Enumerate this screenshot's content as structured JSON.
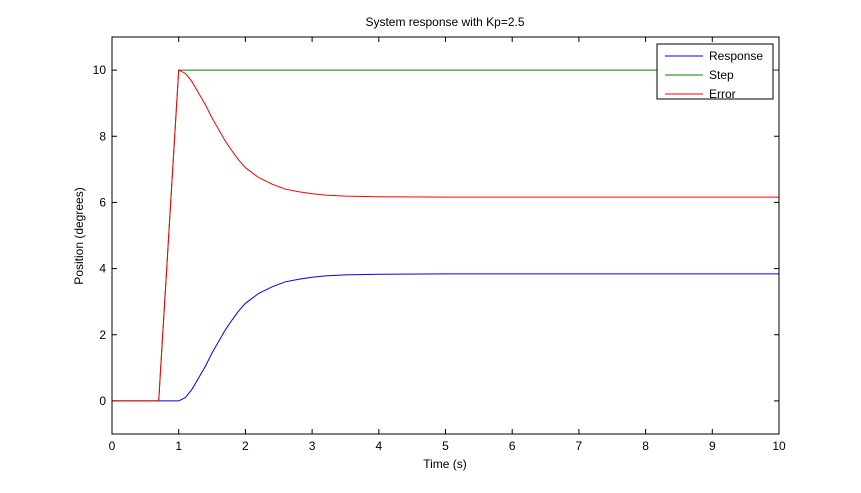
{
  "chart_data": {
    "type": "line",
    "title": "System response with Kp=2.5",
    "xlabel": "Time (s)",
    "ylabel": "Position (degrees)",
    "xlim": [
      0,
      10
    ],
    "ylim": [
      -1,
      11
    ],
    "xticks": [
      0,
      1,
      2,
      3,
      4,
      5,
      6,
      7,
      8,
      9,
      10
    ],
    "yticks": [
      0,
      2,
      4,
      6,
      8,
      10
    ],
    "grid": false,
    "legend_position": "top-right",
    "series": [
      {
        "name": "Response",
        "color": "#0000ff",
        "x": [
          0,
          0.7,
          1.0,
          1.1,
          1.2,
          1.3,
          1.4,
          1.5,
          1.6,
          1.7,
          1.8,
          1.9,
          2.0,
          2.2,
          2.4,
          2.6,
          2.8,
          3.0,
          3.2,
          3.5,
          4.0,
          5.0,
          10.0
        ],
        "y": [
          0,
          0,
          0,
          0.1,
          0.35,
          0.7,
          1.05,
          1.45,
          1.8,
          2.15,
          2.45,
          2.72,
          2.95,
          3.25,
          3.45,
          3.6,
          3.68,
          3.74,
          3.78,
          3.81,
          3.83,
          3.84,
          3.84
        ]
      },
      {
        "name": "Step",
        "color": "#008000",
        "x": [
          0,
          0.7,
          1.0,
          10.0
        ],
        "y": [
          0,
          0,
          10,
          10
        ]
      },
      {
        "name": "Error",
        "color": "#ff0000",
        "x": [
          0,
          0.7,
          1.0,
          1.1,
          1.2,
          1.3,
          1.4,
          1.5,
          1.6,
          1.7,
          1.8,
          1.9,
          2.0,
          2.2,
          2.4,
          2.6,
          2.8,
          3.0,
          3.2,
          3.5,
          4.0,
          5.0,
          10.0
        ],
        "y": [
          0,
          0,
          10,
          9.9,
          9.65,
          9.3,
          8.95,
          8.55,
          8.2,
          7.85,
          7.55,
          7.28,
          7.05,
          6.75,
          6.55,
          6.4,
          6.32,
          6.26,
          6.22,
          6.19,
          6.17,
          6.16,
          6.16
        ]
      }
    ]
  }
}
